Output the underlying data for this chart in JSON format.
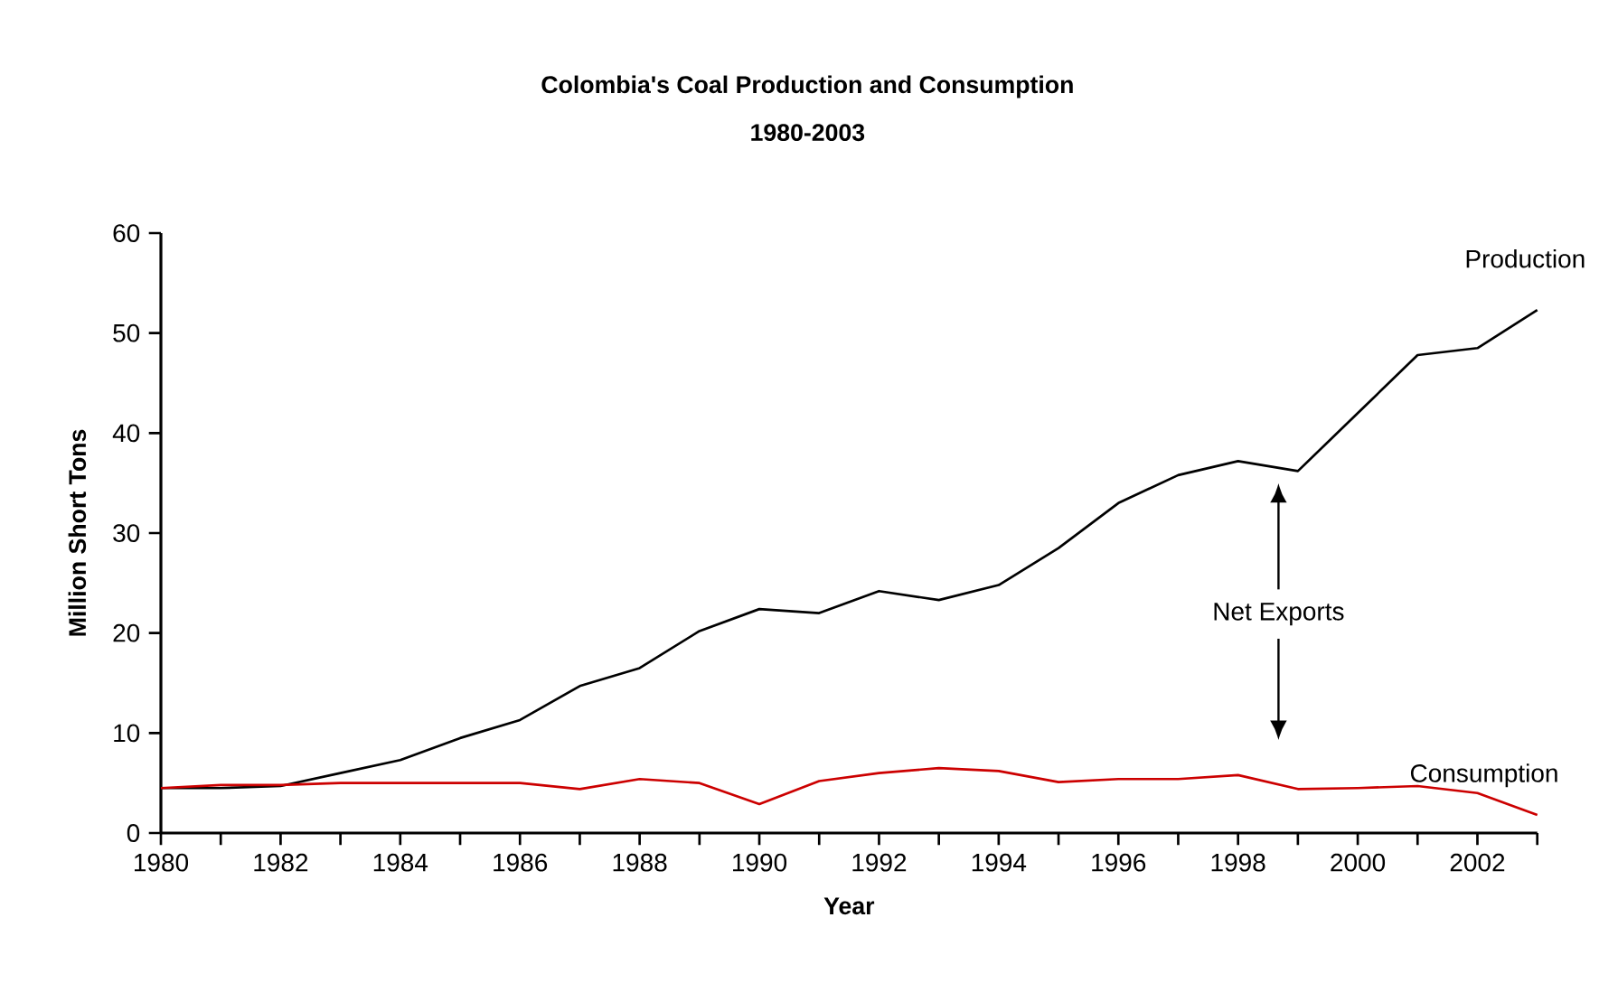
{
  "chart_data": {
    "type": "line",
    "title": "Colombia's Coal Production and Consumption",
    "subtitle": "1980-2003",
    "xlabel": "Year",
    "ylabel": "Million Short Tons",
    "x": [
      1980,
      1981,
      1982,
      1983,
      1984,
      1985,
      1986,
      1987,
      1988,
      1989,
      1990,
      1991,
      1992,
      1993,
      1994,
      1995,
      1996,
      1997,
      1998,
      1999,
      2000,
      2001,
      2002,
      2003
    ],
    "series": [
      {
        "name": "Production",
        "color": "#000000",
        "values": [
          4.5,
          4.5,
          4.7,
          6.0,
          7.3,
          9.5,
          11.3,
          14.7,
          16.5,
          20.2,
          22.4,
          22.0,
          24.2,
          23.3,
          24.8,
          28.5,
          33.0,
          35.8,
          37.2,
          36.2,
          42.0,
          47.8,
          48.5,
          52.3
        ]
      },
      {
        "name": "Consumption",
        "color": "#cc0000",
        "values": [
          4.5,
          4.8,
          4.8,
          5.0,
          5.0,
          5.0,
          5.0,
          4.4,
          5.4,
          5.0,
          2.9,
          5.2,
          6.0,
          6.5,
          6.2,
          5.1,
          5.4,
          5.4,
          5.8,
          4.4,
          4.5,
          4.7,
          4.0,
          1.8
        ]
      }
    ],
    "xlim": [
      1980,
      2003
    ],
    "ylim": [
      0,
      60
    ],
    "xticks": [
      1980,
      {
        "value": 1981,
        "label": null
      },
      1982,
      {
        "value": 1983,
        "label": null
      },
      1984,
      {
        "value": 1985,
        "label": null
      },
      1986,
      {
        "value": 1987,
        "label": null
      },
      1988,
      {
        "value": 1989,
        "label": null
      },
      1990,
      {
        "value": 1991,
        "label": null
      },
      1992,
      {
        "value": 1993,
        "label": null
      },
      1994,
      {
        "value": 1995,
        "label": null
      },
      1996,
      {
        "value": 1997,
        "label": null
      },
      1998,
      {
        "value": 1999,
        "label": null
      },
      2000,
      {
        "value": 2001,
        "label": null
      },
      2002,
      {
        "value": 2003,
        "label": null
      }
    ],
    "yticks": [
      0,
      10,
      20,
      30,
      40,
      50,
      60
    ],
    "grid": false,
    "legend": false,
    "marker": "none",
    "line_style": "solid",
    "annotations": [
      "Net Exports"
    ]
  }
}
